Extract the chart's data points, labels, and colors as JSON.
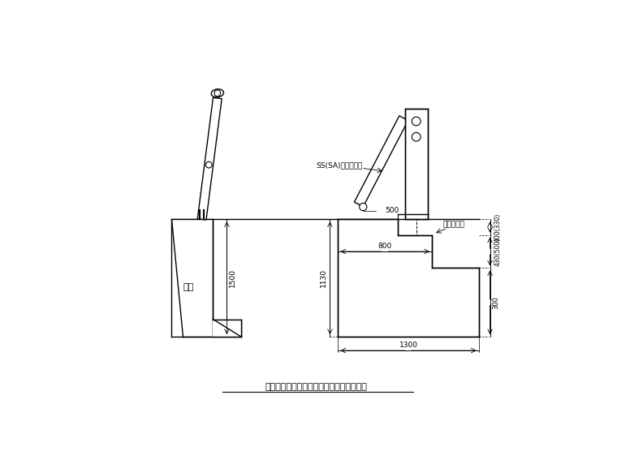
{
  "bg_color": "#ffffff",
  "title": "挡墙上为人行道栏杆和防撞栏杆结构示意图",
  "title_fontsize": 8,
  "dim_1500": "1500",
  "dim_1130": "1130",
  "dim_1300": "1300",
  "dim_800": "800",
  "dim_300": "300",
  "dim_500": "500",
  "dim_400_330": "400(330)",
  "dim_430_500": "430(500)",
  "label_wall": "挡墙",
  "label_road": "车行道路面",
  "label_guardrail": "SS(SA)级路基护栏",
  "label_fontsize": 6.5
}
